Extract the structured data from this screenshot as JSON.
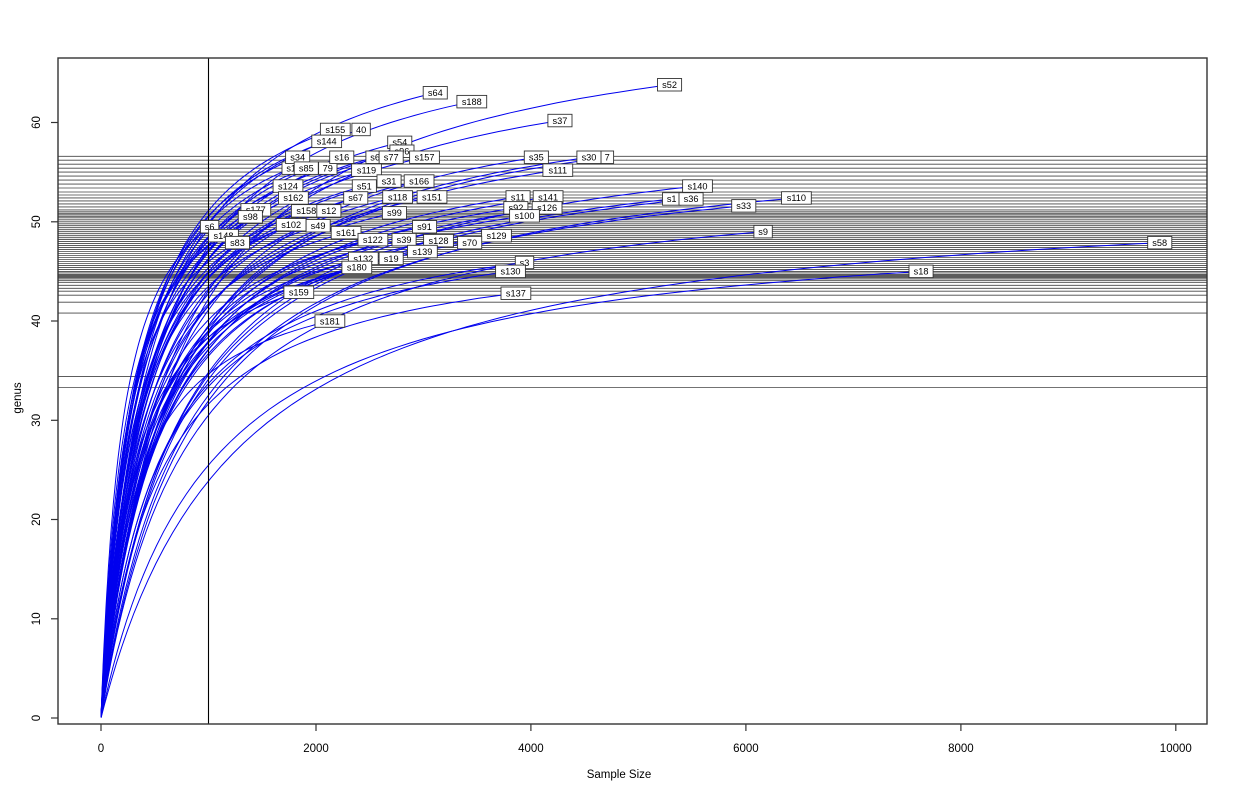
{
  "figure": {
    "xlabel": "Sample Size",
    "ylabel": "genus",
    "background": "#ffffff"
  },
  "chart_data": {
    "type": "line",
    "title": "",
    "subtitle": "",
    "xlabel": "Sample Size",
    "ylabel": "genus",
    "xlim": [
      -400,
      10290
    ],
    "ylim": [
      -0.6,
      66.5
    ],
    "x_ticks": [
      0,
      2000,
      4000,
      6000,
      8000,
      10000
    ],
    "y_ticks": [
      0,
      10,
      20,
      30,
      40,
      50,
      60
    ],
    "grid": false,
    "legend": "none",
    "curve_color": "#0000EE",
    "ref_line_color": "#444444",
    "vline_color": "#000000",
    "box_color": "#333333",
    "label_box_fill": "#ffffff",
    "label_box_stroke": "#333333",
    "vline_x": 1000,
    "hlines_genus": [
      33.3,
      34.4,
      40.8,
      41.9,
      42.6,
      43.0,
      43.3,
      43.6,
      43.9,
      44.1,
      44.25,
      44.4,
      44.5,
      44.6,
      44.7,
      44.85,
      45.0,
      45.2,
      45.4,
      45.6,
      45.8,
      46.0,
      46.2,
      46.4,
      46.6,
      46.8,
      47.0,
      47.2,
      47.4,
      47.6,
      47.8,
      48.0,
      48.2,
      48.4,
      48.6,
      48.8,
      49.0,
      49.2,
      49.4,
      49.6,
      49.8,
      50.0,
      50.2,
      50.4,
      50.55,
      50.7,
      50.85,
      51.0,
      51.2,
      51.5,
      51.8,
      52.1,
      52.4,
      52.7,
      53.0,
      53.4,
      53.8,
      54.2,
      54.6,
      55.0,
      55.4,
      55.8,
      56.2,
      56.6
    ],
    "samples": [
      {
        "label": "40",
        "x": 2420,
        "y": 59.3
      },
      {
        "label": "79",
        "x": 2110,
        "y": 55.4
      },
      {
        "label": "7",
        "x": 4710,
        "y": 56.5
      },
      {
        "label": "s1",
        "x": 1770,
        "y": 55.4
      },
      {
        "label": "s1",
        "x": 5310,
        "y": 52.3
      },
      {
        "label": "s6",
        "x": 2550,
        "y": 56.5
      },
      {
        "label": "s52",
        "x": 5290,
        "y": 63.8
      },
      {
        "label": "s64",
        "x": 3110,
        "y": 63.0
      },
      {
        "label": "s188",
        "x": 3450,
        "y": 62.1
      },
      {
        "label": "s37",
        "x": 4270,
        "y": 60.2
      },
      {
        "label": "s155",
        "x": 2180,
        "y": 59.3
      },
      {
        "label": "s144",
        "x": 2100,
        "y": 58.1
      },
      {
        "label": "s54",
        "x": 2780,
        "y": 58.0
      },
      {
        "label": "s96",
        "x": 2800,
        "y": 57.1
      },
      {
        "label": "s34",
        "x": 1830,
        "y": 56.5
      },
      {
        "label": "s16",
        "x": 2240,
        "y": 56.5
      },
      {
        "label": "s77",
        "x": 2700,
        "y": 56.5
      },
      {
        "label": "s157",
        "x": 3010,
        "y": 56.5
      },
      {
        "label": "s35",
        "x": 4050,
        "y": 56.5
      },
      {
        "label": "s30",
        "x": 4540,
        "y": 56.5
      },
      {
        "label": "s85",
        "x": 1910,
        "y": 55.4
      },
      {
        "label": "s119",
        "x": 2470,
        "y": 55.2
      },
      {
        "label": "s111",
        "x": 4250,
        "y": 55.2
      },
      {
        "label": "s31",
        "x": 2680,
        "y": 54.1
      },
      {
        "label": "s166",
        "x": 2960,
        "y": 54.1
      },
      {
        "label": "s124",
        "x": 1740,
        "y": 53.6
      },
      {
        "label": "s51",
        "x": 2450,
        "y": 53.6
      },
      {
        "label": "s140",
        "x": 5550,
        "y": 53.6
      },
      {
        "label": "s162",
        "x": 1790,
        "y": 52.4
      },
      {
        "label": "s67",
        "x": 2370,
        "y": 52.4
      },
      {
        "label": "s118",
        "x": 2760,
        "y": 52.5
      },
      {
        "label": "s151",
        "x": 3080,
        "y": 52.5
      },
      {
        "label": "s11",
        "x": 3880,
        "y": 52.5
      },
      {
        "label": "s141",
        "x": 4160,
        "y": 52.5
      },
      {
        "label": "s36",
        "x": 5490,
        "y": 52.3
      },
      {
        "label": "s110",
        "x": 6470,
        "y": 52.4
      },
      {
        "label": "s92",
        "x": 3860,
        "y": 51.4
      },
      {
        "label": "s126",
        "x": 4150,
        "y": 51.4
      },
      {
        "label": "s33",
        "x": 5980,
        "y": 51.6
      },
      {
        "label": "s177",
        "x": 1440,
        "y": 51.2
      },
      {
        "label": "s158",
        "x": 1910,
        "y": 51.1
      },
      {
        "label": "s12",
        "x": 2120,
        "y": 51.1
      },
      {
        "label": "s98",
        "x": 1390,
        "y": 50.5
      },
      {
        "label": "s99",
        "x": 2730,
        "y": 50.9
      },
      {
        "label": "s100",
        "x": 3940,
        "y": 50.6
      },
      {
        "label": "s102",
        "x": 1770,
        "y": 49.7
      },
      {
        "label": "s49",
        "x": 2020,
        "y": 49.6
      },
      {
        "label": "s6",
        "x": 1010,
        "y": 49.5
      },
      {
        "label": "s91",
        "x": 3010,
        "y": 49.5
      },
      {
        "label": "s161",
        "x": 2280,
        "y": 48.9
      },
      {
        "label": "s148",
        "x": 1140,
        "y": 48.6
      },
      {
        "label": "s129",
        "x": 3680,
        "y": 48.6
      },
      {
        "label": "s9",
        "x": 6160,
        "y": 49.0
      },
      {
        "label": "s83",
        "x": 1270,
        "y": 47.9
      },
      {
        "label": "s122",
        "x": 2530,
        "y": 48.2
      },
      {
        "label": "s39",
        "x": 2820,
        "y": 48.2
      },
      {
        "label": "s128",
        "x": 3140,
        "y": 48.1
      },
      {
        "label": "s70",
        "x": 3430,
        "y": 47.9
      },
      {
        "label": "s58",
        "x": 9850,
        "y": 47.9
      },
      {
        "label": "s139",
        "x": 2990,
        "y": 47.0
      },
      {
        "label": "s132",
        "x": 2440,
        "y": 46.3
      },
      {
        "label": "s19",
        "x": 2700,
        "y": 46.3
      },
      {
        "label": "s3",
        "x": 3940,
        "y": 45.9
      },
      {
        "label": "s180",
        "x": 2380,
        "y": 45.4
      },
      {
        "label": "s130",
        "x": 3810,
        "y": 45.0
      },
      {
        "label": "s18",
        "x": 7630,
        "y": 45.0
      },
      {
        "label": "s159",
        "x": 1840,
        "y": 42.9
      },
      {
        "label": "s137",
        "x": 3860,
        "y": 42.8
      },
      {
        "label": "s181",
        "x": 2130,
        "y": 40.0
      }
    ]
  }
}
